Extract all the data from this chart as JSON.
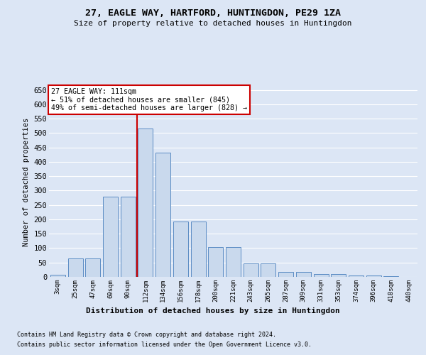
{
  "title1": "27, EAGLE WAY, HARTFORD, HUNTINGDON, PE29 1ZA",
  "title2": "Size of property relative to detached houses in Huntingdon",
  "xlabel": "Distribution of detached houses by size in Huntingdon",
  "ylabel": "Number of detached properties",
  "footer1": "Contains HM Land Registry data © Crown copyright and database right 2024.",
  "footer2": "Contains public sector information licensed under the Open Government Licence v3.0.",
  "annotation_title": "27 EAGLE WAY: 111sqm",
  "annotation_line1": "← 51% of detached houses are smaller (845)",
  "annotation_line2": "49% of semi-detached houses are larger (828) →",
  "bin_labels": [
    "3sqm",
    "25sqm",
    "47sqm",
    "69sqm",
    "90sqm",
    "112sqm",
    "134sqm",
    "156sqm",
    "178sqm",
    "200sqm",
    "221sqm",
    "243sqm",
    "265sqm",
    "287sqm",
    "309sqm",
    "331sqm",
    "353sqm",
    "374sqm",
    "396sqm",
    "418sqm",
    "440sqm"
  ],
  "bar_heights": [
    8,
    65,
    65,
    280,
    280,
    515,
    432,
    192,
    192,
    103,
    103,
    47,
    47,
    17,
    17,
    9,
    9,
    4,
    4,
    2,
    0
  ],
  "bar_fill_color": "#c9d9ed",
  "bar_edge_color": "#5b8cc4",
  "vline_bin": 5,
  "vline_color": "#cc0000",
  "ylim": [
    0,
    660
  ],
  "bg_color": "#dce6f5",
  "grid_color": "#ffffff",
  "annotation_box_color": "#ffffff",
  "annotation_box_edge": "#cc0000"
}
